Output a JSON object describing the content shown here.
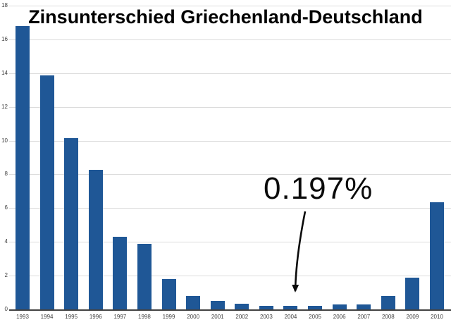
{
  "chart_data": {
    "type": "bar",
    "title": "Zinsunterschied Griechenland-Deutschland",
    "categories": [
      "1993",
      "1994",
      "1995",
      "1996",
      "1997",
      "1998",
      "1999",
      "2000",
      "2001",
      "2002",
      "2003",
      "2004",
      "2005",
      "2006",
      "2007",
      "2008",
      "2009",
      "2010"
    ],
    "values": [
      16.8,
      13.85,
      10.15,
      8.25,
      4.3,
      3.9,
      1.8,
      0.8,
      0.5,
      0.35,
      0.2,
      0.197,
      0.22,
      0.3,
      0.28,
      0.8,
      1.9,
      6.35
    ],
    "xlabel": "",
    "ylabel": "",
    "yticks": [
      0,
      2,
      4,
      6,
      8,
      10,
      12,
      14,
      16,
      18
    ],
    "ylim": [
      0,
      18
    ],
    "grid": true,
    "legend": "none",
    "bar_color": "#1f5796",
    "annotation": {
      "text": "0.197%",
      "target_category": "2004",
      "target_value": 0.197
    }
  },
  "colors": {
    "background": "#ffffff",
    "bar": "#1f5796",
    "gridline": "#dcdcdc",
    "axis": "#424242",
    "tick_label": "#3f3f3f",
    "title": "#000000",
    "annotation": "#0a0a0a"
  }
}
